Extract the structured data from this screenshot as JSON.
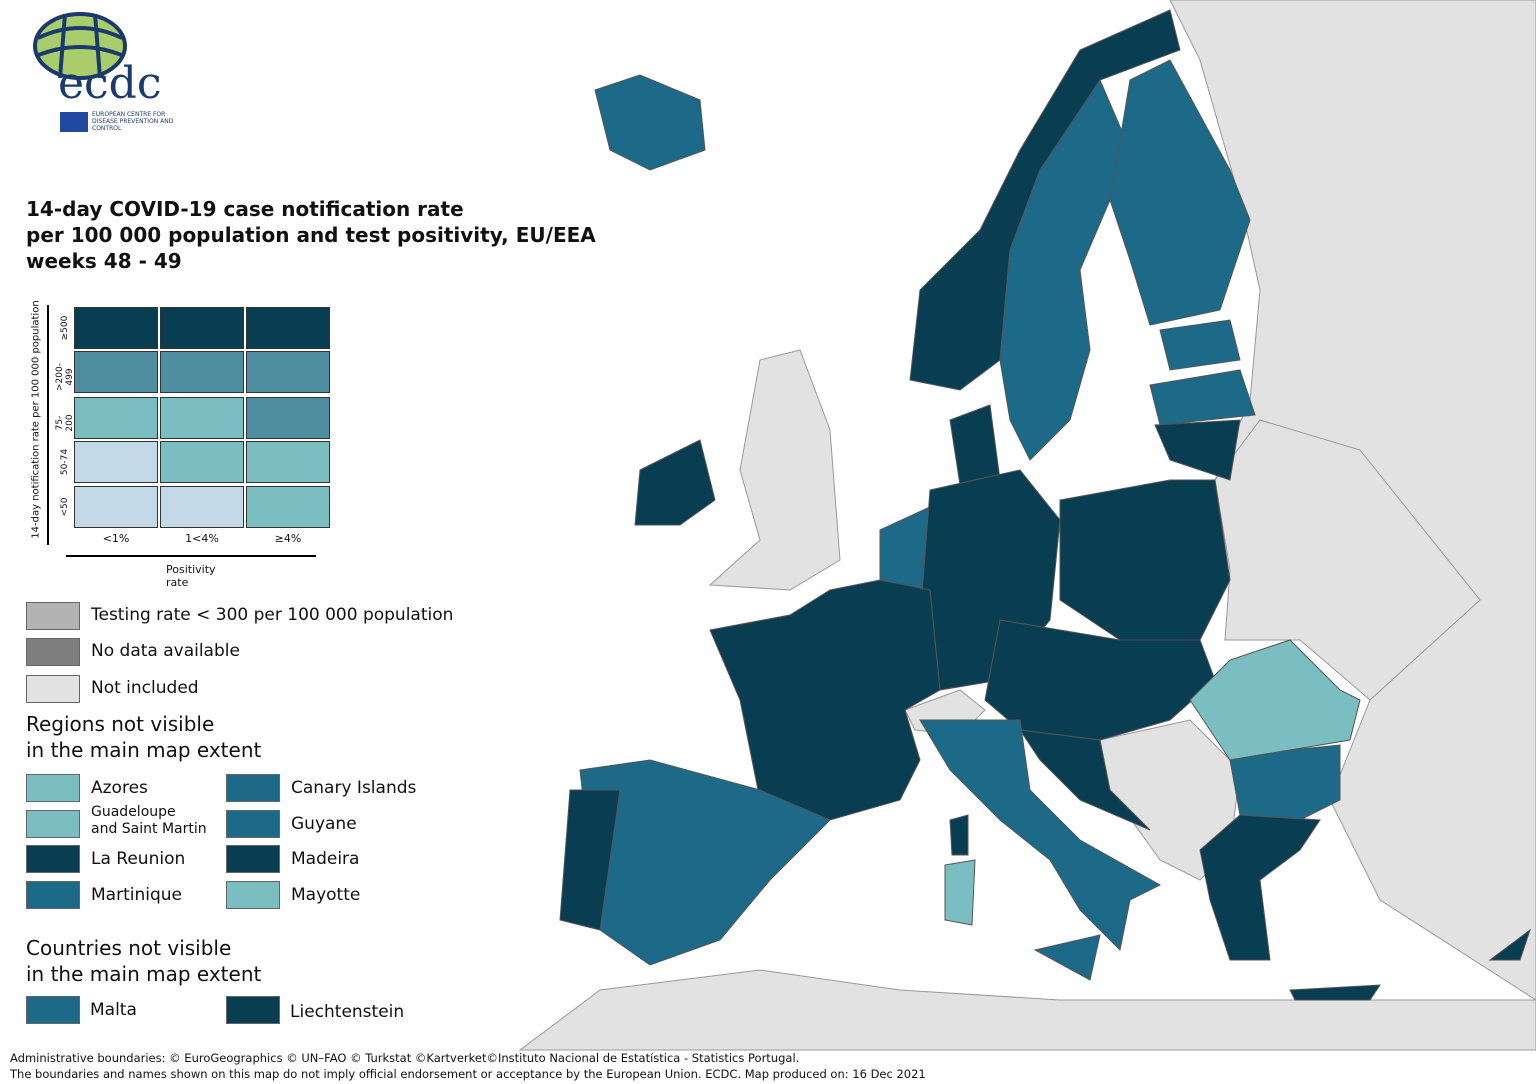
{
  "logo": {
    "text": "ecdc",
    "subtitle": "EUROPEAN CENTRE FOR DISEASE PREVENTION AND CONTROL"
  },
  "title": {
    "line1": "14-day COVID-19 case notification rate",
    "line2": "per 100 000 population and test positivity, EU/EEA",
    "line3": "weeks 48 - 49"
  },
  "matrix": {
    "y_axis_label": "14-day notification rate per 100 000 population",
    "x_axis_label": "Positivity rate",
    "rows": [
      "≥500",
      ">200-499",
      "75-200",
      "50-74",
      "<50"
    ],
    "cols": [
      "<1%",
      "1<4%",
      "≥4%"
    ],
    "colors": [
      [
        "#093d52",
        "#093d52",
        "#093d52"
      ],
      [
        "#4f8ea1",
        "#4f8ea1",
        "#4f8ea1"
      ],
      [
        "#7bbec2",
        "#7bbec2",
        "#4f8ea1"
      ],
      [
        "#c3d9e7",
        "#7bbec2",
        "#7bbec2"
      ],
      [
        "#c3d9e7",
        "#c3d9e7",
        "#7bbec2"
      ]
    ]
  },
  "legend": {
    "testing": "Testing rate < 300 per 100 000 population",
    "nodata": "No data available",
    "notincluded": "Not included",
    "regions_header_1": "Regions not visible",
    "regions_header_2": "in the main map extent",
    "regions": [
      {
        "name": "Azores",
        "color": "#7bbec2"
      },
      {
        "name": "Canary Islands",
        "color": "#1c6a87"
      },
      {
        "name": "Guadeloupe",
        "name2": "and Saint Martin",
        "color": "#7bbec2"
      },
      {
        "name": "Guyane",
        "color": "#1c6a87"
      },
      {
        "name": "La Reunion",
        "color": "#093d52"
      },
      {
        "name": "Madeira",
        "color": "#093d52"
      },
      {
        "name": "Martinique",
        "color": "#1c6a87"
      },
      {
        "name": "Mayotte",
        "color": "#7bbec2"
      }
    ],
    "countries_header_1": "Countries not visible",
    "countries_header_2": "in the main map extent",
    "countries": [
      {
        "name": "Malta",
        "color": "#1c6a87"
      },
      {
        "name": "Liechtenstein",
        "color": "#093d52"
      }
    ]
  },
  "footer": {
    "line1": "Administrative boundaries: © EuroGeographics © UN–FAO © Turkstat ©Kartverket©Instituto Nacional de Estatística - Statistics Portugal.",
    "line2": "The boundaries and names shown on this map do not imply official endorsement or acceptance by the European Union. ECDC. Map produced on: 16 Dec 2021"
  },
  "colors": {
    "dark": "#093d52",
    "mid": "#1c6a87",
    "light": "#7bbec2",
    "pale": "#c3d9e7",
    "grey": "#e2e2e2"
  }
}
